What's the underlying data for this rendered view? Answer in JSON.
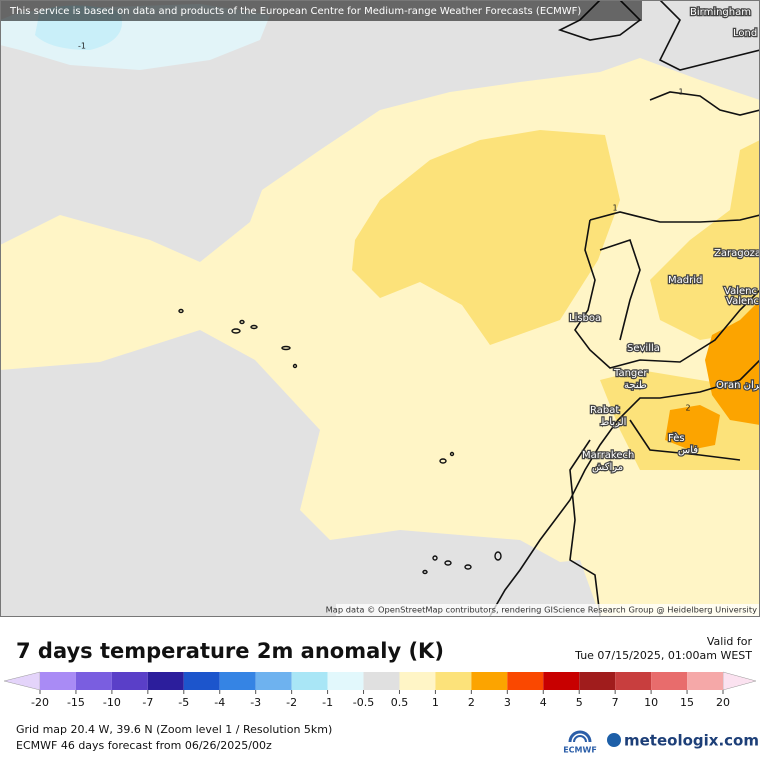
{
  "header": {
    "notice": "This service is based on data and products of the European Centre for Medium-range Weather Forecasts (ECMWF)"
  },
  "map": {
    "places": [
      {
        "name": "Birmingham"
      },
      {
        "name": "Lond"
      },
      {
        "name": "Zaragoza"
      },
      {
        "name": "Madrid"
      },
      {
        "name": "Valenc"
      },
      {
        "name": "Valenc"
      },
      {
        "name": "Lisboa"
      },
      {
        "name": "Sevilla"
      },
      {
        "name": "Tanger",
        "sub": "طنجة"
      },
      {
        "name": "Rabat",
        "sub": "الرباط"
      },
      {
        "name": "Fès",
        "sub": "فاس"
      },
      {
        "name": "Marrakech",
        "sub": "مراكش"
      },
      {
        "name": "Oran وهران"
      }
    ],
    "contour_labels": [
      "-1",
      "1",
      "1",
      "2"
    ],
    "attribution": "Map data © OpenStreetMap contributors, rendering GIScience Research Group @ Heidelberg University"
  },
  "title": "7 days temperature 2m anomaly (K)",
  "valid": {
    "label": "Valid for",
    "time": "Tue 07/15/2025, 01:00am WEST"
  },
  "legend": {
    "ticks": [
      -20,
      -15,
      -10,
      -7,
      -5,
      -4,
      -3,
      -2,
      -1,
      -0.5,
      0.5,
      1,
      2,
      3,
      4,
      5,
      7,
      10,
      15,
      20
    ],
    "colors": [
      "#a98bf5",
      "#7a5ee0",
      "#5a3fc8",
      "#2c1e9c",
      "#1c55cc",
      "#3584e4",
      "#6eb2ef",
      "#a9e6f6",
      "#e2f8fc",
      "#e0e0e0",
      "#fff5c6",
      "#fce27a",
      "#fca400",
      "#fa4800",
      "#c80000",
      "#a01c1c",
      "#c83e3e",
      "#e86c6c",
      "#f5a8a8"
    ],
    "below_color": "#e4d4fa",
    "above_color": "#fbe2f0"
  },
  "footer": {
    "grid": "Grid map 20.4 W, 39.6 N (Zoom level 1 / Resolution 5km)",
    "forecast": "ECMWF 46 days forecast from  06/26/2025/00z"
  },
  "logos": {
    "ecmwf": "ECMWF",
    "meteologix": "meteologix.com"
  }
}
